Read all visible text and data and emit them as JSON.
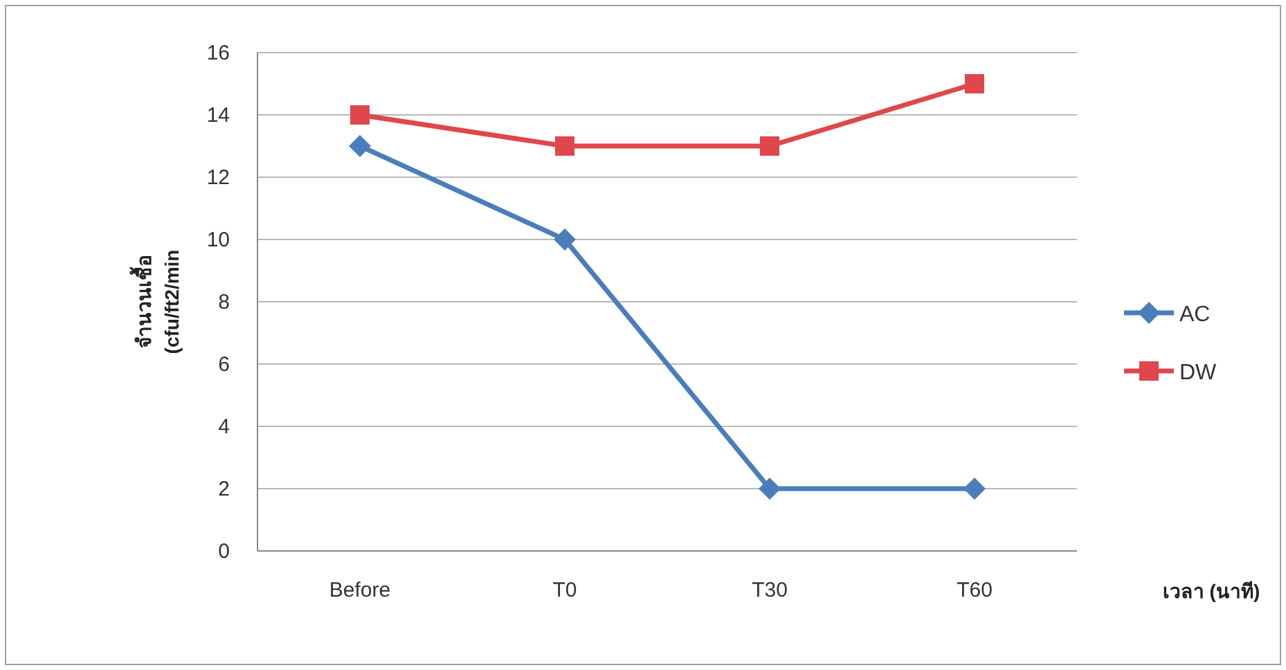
{
  "chart_data": {
    "type": "line",
    "xlabel": "เวลา (นาที)",
    "ylabel": "จำนวนเชื้อ\n(cfu/ft2/min",
    "categories": [
      "Before",
      "T0",
      "T30",
      "T60"
    ],
    "series": [
      {
        "name": "AC",
        "color": "#4a7ebb",
        "marker": "diamond",
        "values": [
          13,
          10,
          2,
          2
        ]
      },
      {
        "name": "DW",
        "color": "#e0474c",
        "marker": "square",
        "values": [
          14,
          13,
          13,
          15
        ]
      }
    ],
    "ylim": [
      0,
      16
    ],
    "yticks": [
      0,
      2,
      4,
      6,
      8,
      10,
      12,
      14,
      16
    ],
    "grid": "y",
    "legend": "right"
  }
}
